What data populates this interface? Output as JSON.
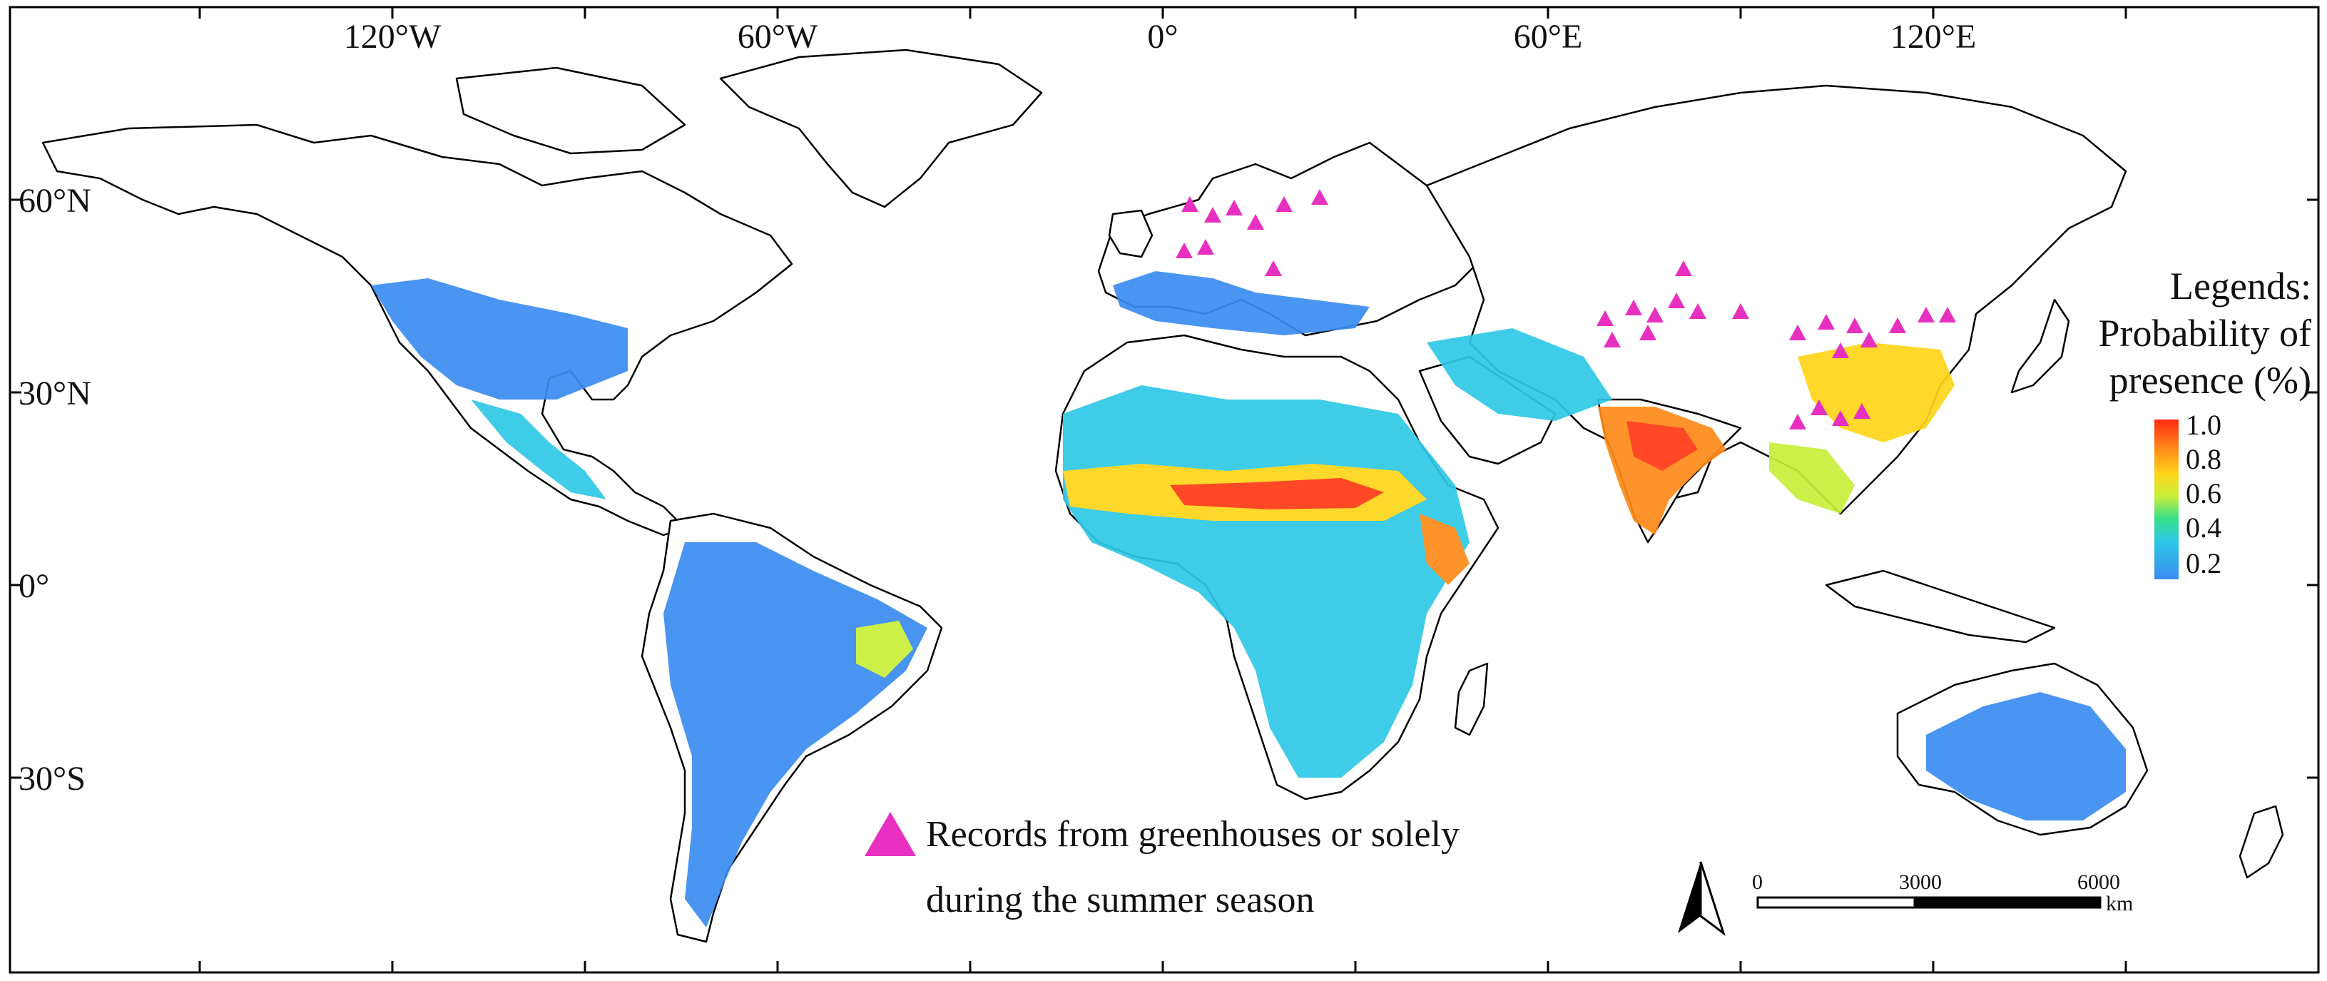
{
  "map": {
    "longitude_labels": [
      "120°W",
      "60°W",
      "0°",
      "60°E",
      "120°E"
    ],
    "latitude_labels": [
      "60°N",
      "30°N",
      "0°",
      "30°S"
    ],
    "legend": {
      "heading": "Legends:",
      "title_line1": "Probability of",
      "title_line2": "presence (%)",
      "ticks": [
        "1.0",
        "0.8",
        "0.6",
        "0.4",
        "0.2"
      ],
      "ramp_colors": [
        "#ff2a10",
        "#ff8a1a",
        "#ffd51a",
        "#c8ef3a",
        "#39e08a",
        "#2ec8e6",
        "#3a8cf0"
      ]
    },
    "records_marker": {
      "color": "#e830c0",
      "label_line1": "Records from greenhouses or solely",
      "label_line2": "during the summer season"
    },
    "scale_bar": {
      "ticks": [
        "0",
        "3000",
        "6000"
      ],
      "unit": "km"
    },
    "north_arrow": "north-arrow-icon"
  }
}
